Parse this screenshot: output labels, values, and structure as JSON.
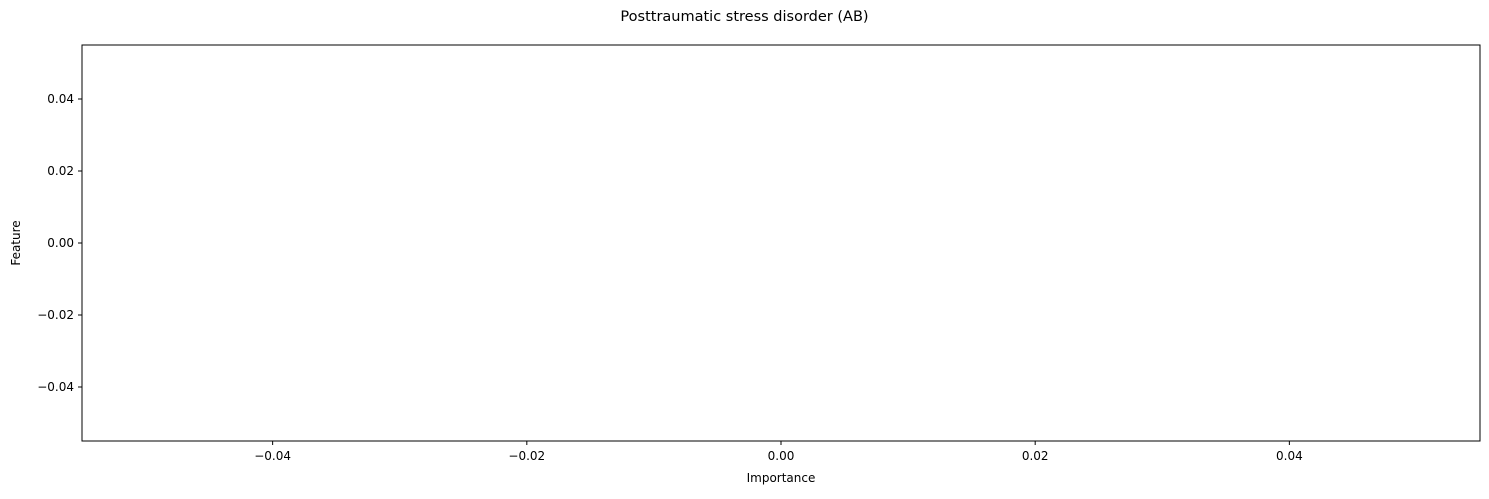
{
  "chart_data": {
    "type": "bar",
    "title": "Posttraumatic stress disorder (AB)",
    "xlabel": "Importance",
    "ylabel": "Feature",
    "xlim": [
      -0.055,
      0.055
    ],
    "ylim": [
      0.055,
      -0.055
    ],
    "x_ticks": [
      -0.04,
      -0.02,
      0.0,
      0.02,
      0.04
    ],
    "x_tick_labels": [
      "−0.04",
      "−0.02",
      "0.00",
      "0.02",
      "0.04"
    ],
    "y_ticks": [
      -0.04,
      -0.02,
      0.0,
      0.02,
      0.04
    ],
    "y_tick_labels": [
      "−0.04",
      "−0.02",
      "0.00",
      "0.02",
      "0.04"
    ],
    "categories": [],
    "values": [],
    "grid": false,
    "colors": {
      "axis": "#000000",
      "background": "#ffffff"
    }
  }
}
